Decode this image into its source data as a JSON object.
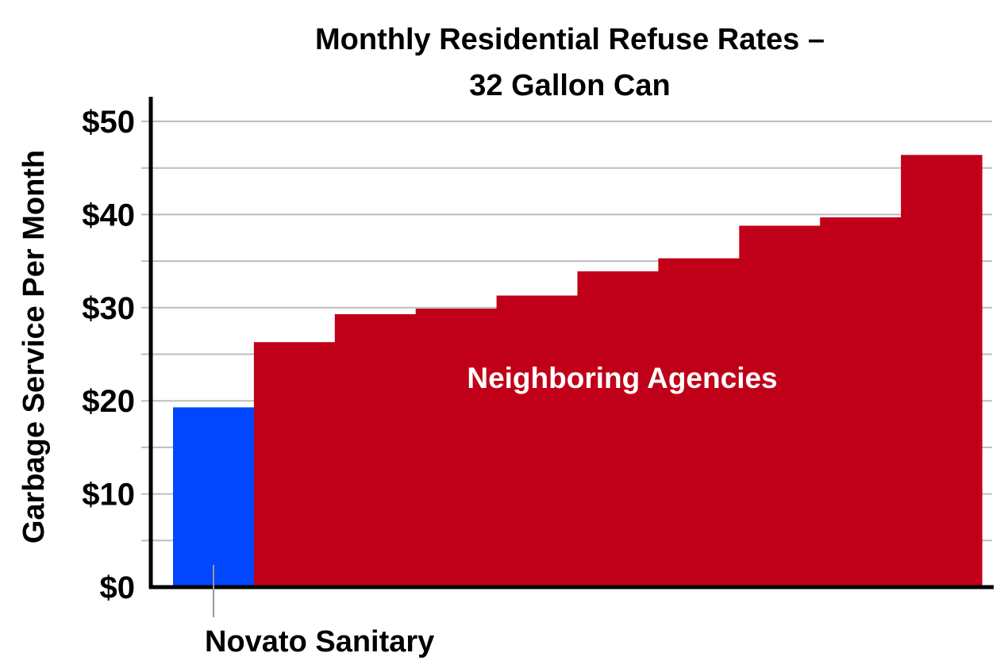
{
  "chart_data": {
    "type": "bar",
    "title": [
      "Monthly Residential Refuse Rates –",
      "32 Gallon Can"
    ],
    "ylabel": "Garbage Service Per Month",
    "xlabel": "",
    "ylim": [
      0,
      52
    ],
    "yticks": [
      0,
      10,
      20,
      30,
      40,
      50
    ],
    "ytick_labels": [
      "$0",
      "$10",
      "$20",
      "$30",
      "$40",
      "$50"
    ],
    "gridlines_at": [
      5,
      10,
      15,
      20,
      25,
      30,
      35,
      40,
      45,
      50
    ],
    "grid": true,
    "values": [
      19.3,
      26.3,
      29.3,
      29.9,
      31.3,
      33.9,
      35.3,
      38.8,
      39.7,
      46.4
    ],
    "group": [
      "Novato Sanitary",
      "Neighboring Agencies",
      "Neighboring Agencies",
      "Neighboring Agencies",
      "Neighboring Agencies",
      "Neighboring Agencies",
      "Neighboring Agencies",
      "Neighboring Agencies",
      "Neighboring Agencies",
      "Neighboring Agencies"
    ],
    "colors": {
      "highlight": "#0047ff",
      "others": "#c00018",
      "grid": "#bdbdbd",
      "axis": "#000000",
      "callout": "#999999"
    },
    "annotations": {
      "neighbors": "Neighboring Agencies",
      "novato": "Novato Sanitary"
    }
  }
}
